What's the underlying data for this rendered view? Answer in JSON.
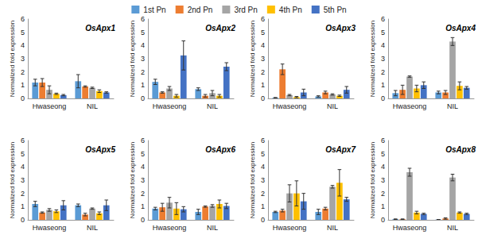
{
  "chart_data": [
    {
      "type": "bar",
      "title": "OsApx1",
      "y_label": "Normalized fold expression",
      "categories": [
        "Hwaseong",
        "NIL"
      ],
      "ylim": [
        0,
        6
      ],
      "yticks": [
        0,
        1,
        2,
        3,
        4,
        5,
        6
      ],
      "grid": false,
      "legend": "top",
      "series": [
        {
          "name": "1st Pn",
          "color": "#5B9BD5",
          "values": [
            1.2,
            1.3
          ],
          "errors": [
            0.25,
            0.5
          ]
        },
        {
          "name": "2nd Pn",
          "color": "#ED7D31",
          "values": [
            1.2,
            0.9
          ],
          "errors": [
            0.3,
            0.05
          ]
        },
        {
          "name": "3rd Pn",
          "color": "#A5A5A5",
          "values": [
            0.65,
            0.8
          ],
          "errors": [
            0.3,
            0.05
          ]
        },
        {
          "name": "4th Pn",
          "color": "#FFC000",
          "values": [
            0.35,
            0.55
          ],
          "errors": [
            0.05,
            0.1
          ]
        },
        {
          "name": "5th Pn",
          "color": "#4472C4",
          "values": [
            0.25,
            0.45
          ],
          "errors": [
            0.05,
            0.05
          ]
        }
      ]
    },
    {
      "type": "bar",
      "title": "OsApx2",
      "y_label": "Normalized fold expression",
      "categories": [
        "Hwaseong",
        "NIL"
      ],
      "ylim": [
        0,
        6
      ],
      "yticks": [
        0,
        1,
        2,
        3,
        4,
        5,
        6
      ],
      "grid": false,
      "series": [
        {
          "name": "1st Pn",
          "color": "#5B9BD5",
          "values": [
            1.25,
            0.7
          ],
          "errors": [
            0.2,
            0.1
          ]
        },
        {
          "name": "2nd Pn",
          "color": "#ED7D31",
          "values": [
            0.45,
            0.2
          ],
          "errors": [
            0.05,
            0.1
          ]
        },
        {
          "name": "3rd Pn",
          "color": "#A5A5A5",
          "values": [
            0.75,
            0.4
          ],
          "errors": [
            0.15,
            0.2
          ]
        },
        {
          "name": "4th Pn",
          "color": "#FFC000",
          "values": [
            0.2,
            0.2
          ],
          "errors": [
            0.1,
            0.1
          ]
        },
        {
          "name": "5th Pn",
          "color": "#4472C4",
          "values": [
            3.25,
            2.4
          ],
          "errors": [
            1.1,
            0.3
          ]
        }
      ]
    },
    {
      "type": "bar",
      "title": "OsApx3",
      "y_label": "Normalized fold expression",
      "categories": [
        "Hwaseong",
        "NIL"
      ],
      "ylim": [
        0,
        6
      ],
      "yticks": [
        0,
        1,
        2,
        3,
        4,
        5,
        6
      ],
      "grid": false,
      "series": [
        {
          "name": "1st Pn",
          "color": "#5B9BD5",
          "values": [
            0.05,
            0.15
          ],
          "errors": [
            0.02,
            0.05
          ]
        },
        {
          "name": "2nd Pn",
          "color": "#ED7D31",
          "values": [
            2.2,
            0.45
          ],
          "errors": [
            0.4,
            0.1
          ]
        },
        {
          "name": "3rd Pn",
          "color": "#A5A5A5",
          "values": [
            0.25,
            0.3
          ],
          "errors": [
            0.05,
            0.05
          ]
        },
        {
          "name": "4th Pn",
          "color": "#FFC000",
          "values": [
            0.1,
            0.2
          ],
          "errors": [
            0.05,
            0.05
          ]
        },
        {
          "name": "5th Pn",
          "color": "#4472C4",
          "values": [
            0.45,
            0.65
          ],
          "errors": [
            0.25,
            0.25
          ]
        }
      ]
    },
    {
      "type": "bar",
      "title": "OsApx4",
      "y_label": "Normalized fold expression",
      "categories": [
        "Hwaseong",
        "NIL"
      ],
      "ylim": [
        0,
        6
      ],
      "yticks": [
        0,
        1,
        2,
        3,
        4,
        5,
        6
      ],
      "grid": false,
      "series": [
        {
          "name": "1st Pn",
          "color": "#5B9BD5",
          "values": [
            0.4,
            0.45
          ],
          "errors": [
            0.2,
            0.1
          ]
        },
        {
          "name": "2nd Pn",
          "color": "#ED7D31",
          "values": [
            0.65,
            0.45
          ],
          "errors": [
            0.35,
            0.15
          ]
        },
        {
          "name": "3rd Pn",
          "color": "#A5A5A5",
          "values": [
            1.65,
            4.3
          ],
          "errors": [
            0.05,
            0.3
          ]
        },
        {
          "name": "4th Pn",
          "color": "#FFC000",
          "values": [
            0.75,
            0.95
          ],
          "errors": [
            0.25,
            0.3
          ]
        },
        {
          "name": "5th Pn",
          "color": "#4472C4",
          "values": [
            1.0,
            0.8
          ],
          "errors": [
            0.25,
            0.1
          ]
        }
      ]
    },
    {
      "type": "bar",
      "title": "OsApx5",
      "y_label": "Normalized fold expression",
      "categories": [
        "Hwaseong",
        "NIL"
      ],
      "ylim": [
        0,
        6
      ],
      "yticks": [
        0,
        1,
        2,
        3,
        4,
        5,
        6
      ],
      "grid": false,
      "series": [
        {
          "name": "1st Pn",
          "color": "#5B9BD5",
          "values": [
            1.2,
            1.1
          ],
          "errors": [
            0.2,
            0.1
          ]
        },
        {
          "name": "2nd Pn",
          "color": "#ED7D31",
          "values": [
            0.55,
            0.4
          ],
          "errors": [
            0.05,
            0.1
          ]
        },
        {
          "name": "3rd Pn",
          "color": "#A5A5A5",
          "values": [
            0.75,
            0.85
          ],
          "errors": [
            0.1,
            0.05
          ]
        },
        {
          "name": "4th Pn",
          "color": "#FFC000",
          "values": [
            0.65,
            0.5
          ],
          "errors": [
            0.1,
            0.1
          ]
        },
        {
          "name": "5th Pn",
          "color": "#4472C4",
          "values": [
            1.1,
            1.1
          ],
          "errors": [
            0.35,
            0.4
          ]
        }
      ]
    },
    {
      "type": "bar",
      "title": "OsApx6",
      "y_label": "Normalized fold expression",
      "categories": [
        "Hwaseong",
        "NIL"
      ],
      "ylim": [
        0,
        6
      ],
      "yticks": [
        0,
        1,
        2,
        3,
        4,
        5,
        6
      ],
      "grid": false,
      "series": [
        {
          "name": "1st Pn",
          "color": "#5B9BD5",
          "values": [
            0.85,
            0.6
          ],
          "errors": [
            0.1,
            0.2
          ]
        },
        {
          "name": "2nd Pn",
          "color": "#ED7D31",
          "values": [
            0.95,
            1.0
          ],
          "errors": [
            0.3,
            0.05
          ]
        },
        {
          "name": "3rd Pn",
          "color": "#A5A5A5",
          "values": [
            1.3,
            1.05
          ],
          "errors": [
            0.4,
            0.1
          ]
        },
        {
          "name": "4th Pn",
          "color": "#FFC000",
          "values": [
            0.85,
            1.2
          ],
          "errors": [
            0.45,
            0.3
          ]
        },
        {
          "name": "5th Pn",
          "color": "#4472C4",
          "values": [
            0.8,
            1.05
          ],
          "errors": [
            0.2,
            0.2
          ]
        }
      ]
    },
    {
      "type": "bar",
      "title": "OsApx7",
      "y_label": "Normalized fold expression",
      "categories": [
        "Hwaseong",
        "NIL"
      ],
      "ylim": [
        0,
        6
      ],
      "yticks": [
        0,
        1,
        2,
        3,
        4,
        5,
        6
      ],
      "grid": false,
      "series": [
        {
          "name": "1st Pn",
          "color": "#5B9BD5",
          "values": [
            0.6,
            0.6
          ],
          "errors": [
            0.05,
            0.2
          ]
        },
        {
          "name": "2nd Pn",
          "color": "#ED7D31",
          "values": [
            0.7,
            0.85
          ],
          "errors": [
            0.1,
            0.1
          ]
        },
        {
          "name": "3rd Pn",
          "color": "#A5A5A5",
          "values": [
            2.0,
            2.5
          ],
          "errors": [
            0.65,
            0.1
          ]
        },
        {
          "name": "4th Pn",
          "color": "#FFC000",
          "values": [
            2.0,
            2.8
          ],
          "errors": [
            0.95,
            1.0
          ]
        },
        {
          "name": "5th Pn",
          "color": "#4472C4",
          "values": [
            1.4,
            1.55
          ],
          "errors": [
            0.6,
            0.15
          ]
        }
      ]
    },
    {
      "type": "bar",
      "title": "OsApx8",
      "y_label": "Normalized fold expression",
      "categories": [
        "Hwaseong",
        "NIL"
      ],
      "ylim": [
        0,
        6
      ],
      "yticks": [
        0,
        1,
        2,
        3,
        4,
        5,
        6
      ],
      "grid": false,
      "series": [
        {
          "name": "1st Pn",
          "color": "#5B9BD5",
          "values": [
            0.05,
            0.02
          ],
          "errors": [
            0.02,
            0.01
          ]
        },
        {
          "name": "2nd Pn",
          "color": "#ED7D31",
          "values": [
            0.05,
            0.1
          ],
          "errors": [
            0.02,
            0.05
          ]
        },
        {
          "name": "3rd Pn",
          "color": "#A5A5A5",
          "values": [
            3.6,
            3.2
          ],
          "errors": [
            0.3,
            0.25
          ]
        },
        {
          "name": "4th Pn",
          "color": "#FFC000",
          "values": [
            0.55,
            0.55
          ],
          "errors": [
            0.1,
            0.05
          ]
        },
        {
          "name": "5th Pn",
          "color": "#4472C4",
          "values": [
            0.45,
            0.45
          ],
          "errors": [
            0.05,
            0.05
          ]
        }
      ]
    }
  ]
}
